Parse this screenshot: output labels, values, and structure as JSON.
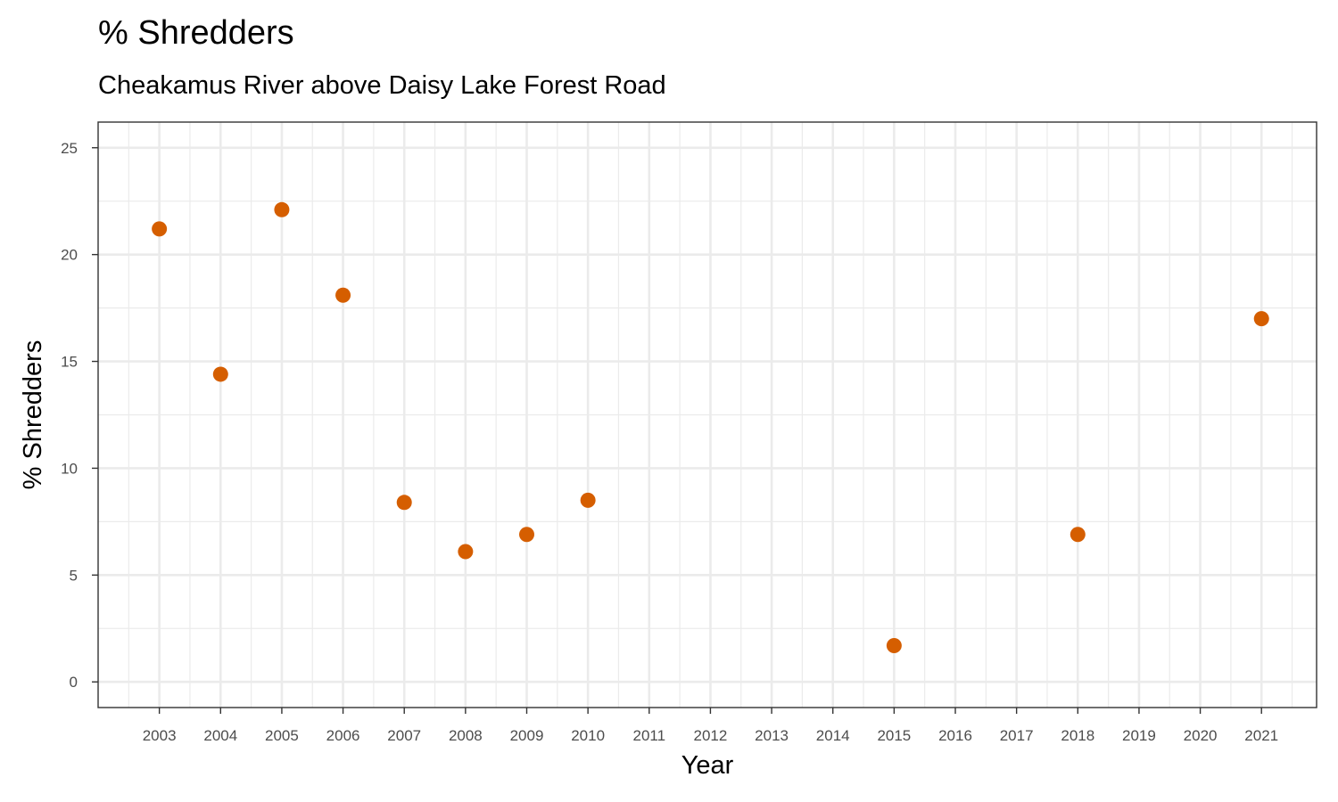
{
  "chart_data": {
    "type": "scatter",
    "title": "% Shredders",
    "subtitle": "Cheakamus River above Daisy Lake Forest Road",
    "xlabel": "Year",
    "ylabel": "% Shredders",
    "x_ticks": [
      "2003",
      "2004",
      "2005",
      "2006",
      "2007",
      "2008",
      "2009",
      "2010",
      "2011",
      "2012",
      "2013",
      "2014",
      "2015",
      "2016",
      "2017",
      "2018",
      "2019",
      "2020",
      "2021"
    ],
    "y_ticks": [
      0,
      5,
      10,
      15,
      20,
      25
    ],
    "xlim": [
      2002.0,
      2021.9
    ],
    "ylim": [
      -1.2,
      26.2
    ],
    "grid": true,
    "series": [
      {
        "color": "#d55e00",
        "points": [
          {
            "x": 2003,
            "y": 21.2
          },
          {
            "x": 2004,
            "y": 14.4
          },
          {
            "x": 2005,
            "y": 22.1
          },
          {
            "x": 2006,
            "y": 18.1
          },
          {
            "x": 2007,
            "y": 8.4
          },
          {
            "x": 2008,
            "y": 6.1
          },
          {
            "x": 2009,
            "y": 6.9
          },
          {
            "x": 2010,
            "y": 8.5
          },
          {
            "x": 2015,
            "y": 1.7
          },
          {
            "x": 2018,
            "y": 6.9
          },
          {
            "x": 2021,
            "y": 17.0
          }
        ]
      }
    ]
  }
}
